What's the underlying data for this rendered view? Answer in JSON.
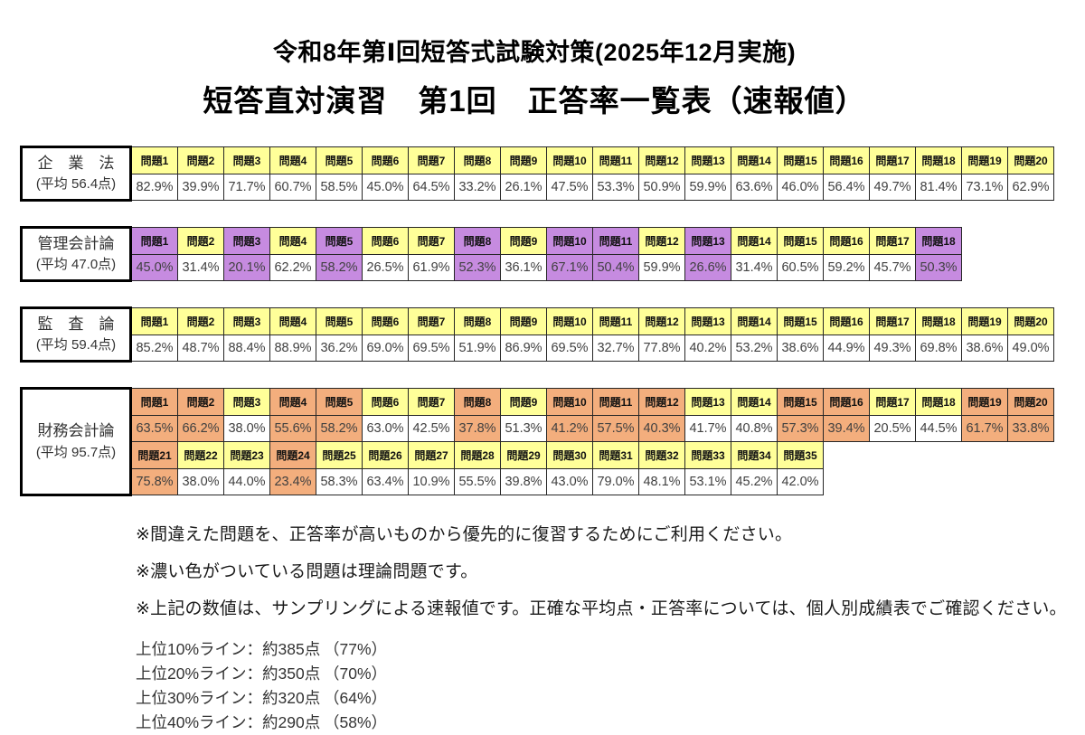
{
  "header": {
    "title_line1": "令和8年第Ⅰ回短答式試験対策(2025年12月実施)",
    "title_line2": "短答直対演習　第1回　正答率一覧表（速報値）"
  },
  "colors": {
    "header_yellow": "#FFFF99",
    "theory_purple": "#C68BE0",
    "theory_orange": "#F3AE7D",
    "table_border": "#000000"
  },
  "problem_prefix": "問題",
  "tables": [
    {
      "subject": "企　業　法",
      "average": "(平均 56.4点)",
      "theory_color": "#FFFF99",
      "rows": [
        {
          "start": 1,
          "values": [
            "82.9%",
            "39.9%",
            "71.7%",
            "60.7%",
            "58.5%",
            "45.0%",
            "64.5%",
            "33.2%",
            "26.1%",
            "47.5%",
            "53.3%",
            "50.9%",
            "59.9%",
            "63.6%",
            "46.0%",
            "56.4%",
            "49.7%",
            "81.4%",
            "73.1%",
            "62.9%"
          ],
          "theory": [
            false,
            false,
            false,
            false,
            false,
            false,
            false,
            false,
            false,
            false,
            false,
            false,
            false,
            false,
            false,
            false,
            false,
            false,
            false,
            false
          ]
        }
      ]
    },
    {
      "subject": "管理会計論",
      "average": "(平均 47.0点)",
      "theory_color": "#C68BE0",
      "rows": [
        {
          "start": 1,
          "values": [
            "45.0%",
            "31.4%",
            "20.1%",
            "62.2%",
            "58.2%",
            "26.5%",
            "61.9%",
            "52.3%",
            "36.1%",
            "67.1%",
            "50.4%",
            "59.9%",
            "26.6%",
            "31.4%",
            "60.5%",
            "59.2%",
            "45.7%",
            "50.3%"
          ],
          "theory": [
            true,
            false,
            true,
            false,
            true,
            false,
            false,
            true,
            false,
            true,
            true,
            false,
            true,
            false,
            false,
            false,
            false,
            true
          ]
        }
      ]
    },
    {
      "subject": "監　査　論",
      "average": "(平均 59.4点)",
      "theory_color": "#FFFF99",
      "rows": [
        {
          "start": 1,
          "values": [
            "85.2%",
            "48.7%",
            "88.4%",
            "88.9%",
            "36.2%",
            "69.0%",
            "69.5%",
            "51.9%",
            "86.9%",
            "69.5%",
            "32.7%",
            "77.8%",
            "40.2%",
            "53.2%",
            "38.6%",
            "44.9%",
            "49.3%",
            "69.8%",
            "38.6%",
            "49.0%"
          ],
          "theory": [
            false,
            false,
            false,
            false,
            false,
            false,
            false,
            false,
            false,
            false,
            false,
            false,
            false,
            false,
            false,
            false,
            false,
            false,
            false,
            false
          ]
        }
      ]
    },
    {
      "subject": "財務会計論",
      "average": "(平均 95.7点)",
      "theory_color": "#F3AE7D",
      "rows": [
        {
          "start": 1,
          "values": [
            "63.5%",
            "66.2%",
            "38.0%",
            "55.6%",
            "58.2%",
            "63.0%",
            "42.5%",
            "37.8%",
            "51.3%",
            "41.2%",
            "57.5%",
            "40.3%",
            "41.7%",
            "40.8%",
            "57.3%",
            "39.4%",
            "20.5%",
            "44.5%",
            "61.7%",
            "33.8%"
          ],
          "theory": [
            true,
            true,
            false,
            true,
            true,
            false,
            false,
            true,
            false,
            true,
            true,
            true,
            false,
            false,
            true,
            true,
            false,
            false,
            true,
            true
          ]
        },
        {
          "start": 21,
          "values": [
            "75.8%",
            "38.0%",
            "44.0%",
            "23.4%",
            "58.3%",
            "63.4%",
            "10.9%",
            "55.5%",
            "39.8%",
            "43.0%",
            "79.0%",
            "48.1%",
            "53.1%",
            "45.2%",
            "42.0%"
          ],
          "theory": [
            true,
            false,
            false,
            true,
            false,
            false,
            false,
            false,
            false,
            false,
            false,
            false,
            false,
            false,
            false
          ]
        }
      ]
    }
  ],
  "notes": [
    "※間違えた問題を、正答率が高いものから優先的に復習するためにご利用ください。",
    "※濃い色がついている問題は理論問題です。",
    "※上記の数値は、サンプリングによる速報値です。正確な平均点・正答率については、個人別成績表でご確認ください。"
  ],
  "lines": [
    {
      "label": "上位10%ライン：約385点",
      "pct": "（77%）"
    },
    {
      "label": "上位20%ライン：約350点",
      "pct": "（70%）"
    },
    {
      "label": "上位30%ライン：約320点",
      "pct": "（64%）"
    },
    {
      "label": "上位40%ライン：約290点",
      "pct": "（58%）"
    }
  ]
}
